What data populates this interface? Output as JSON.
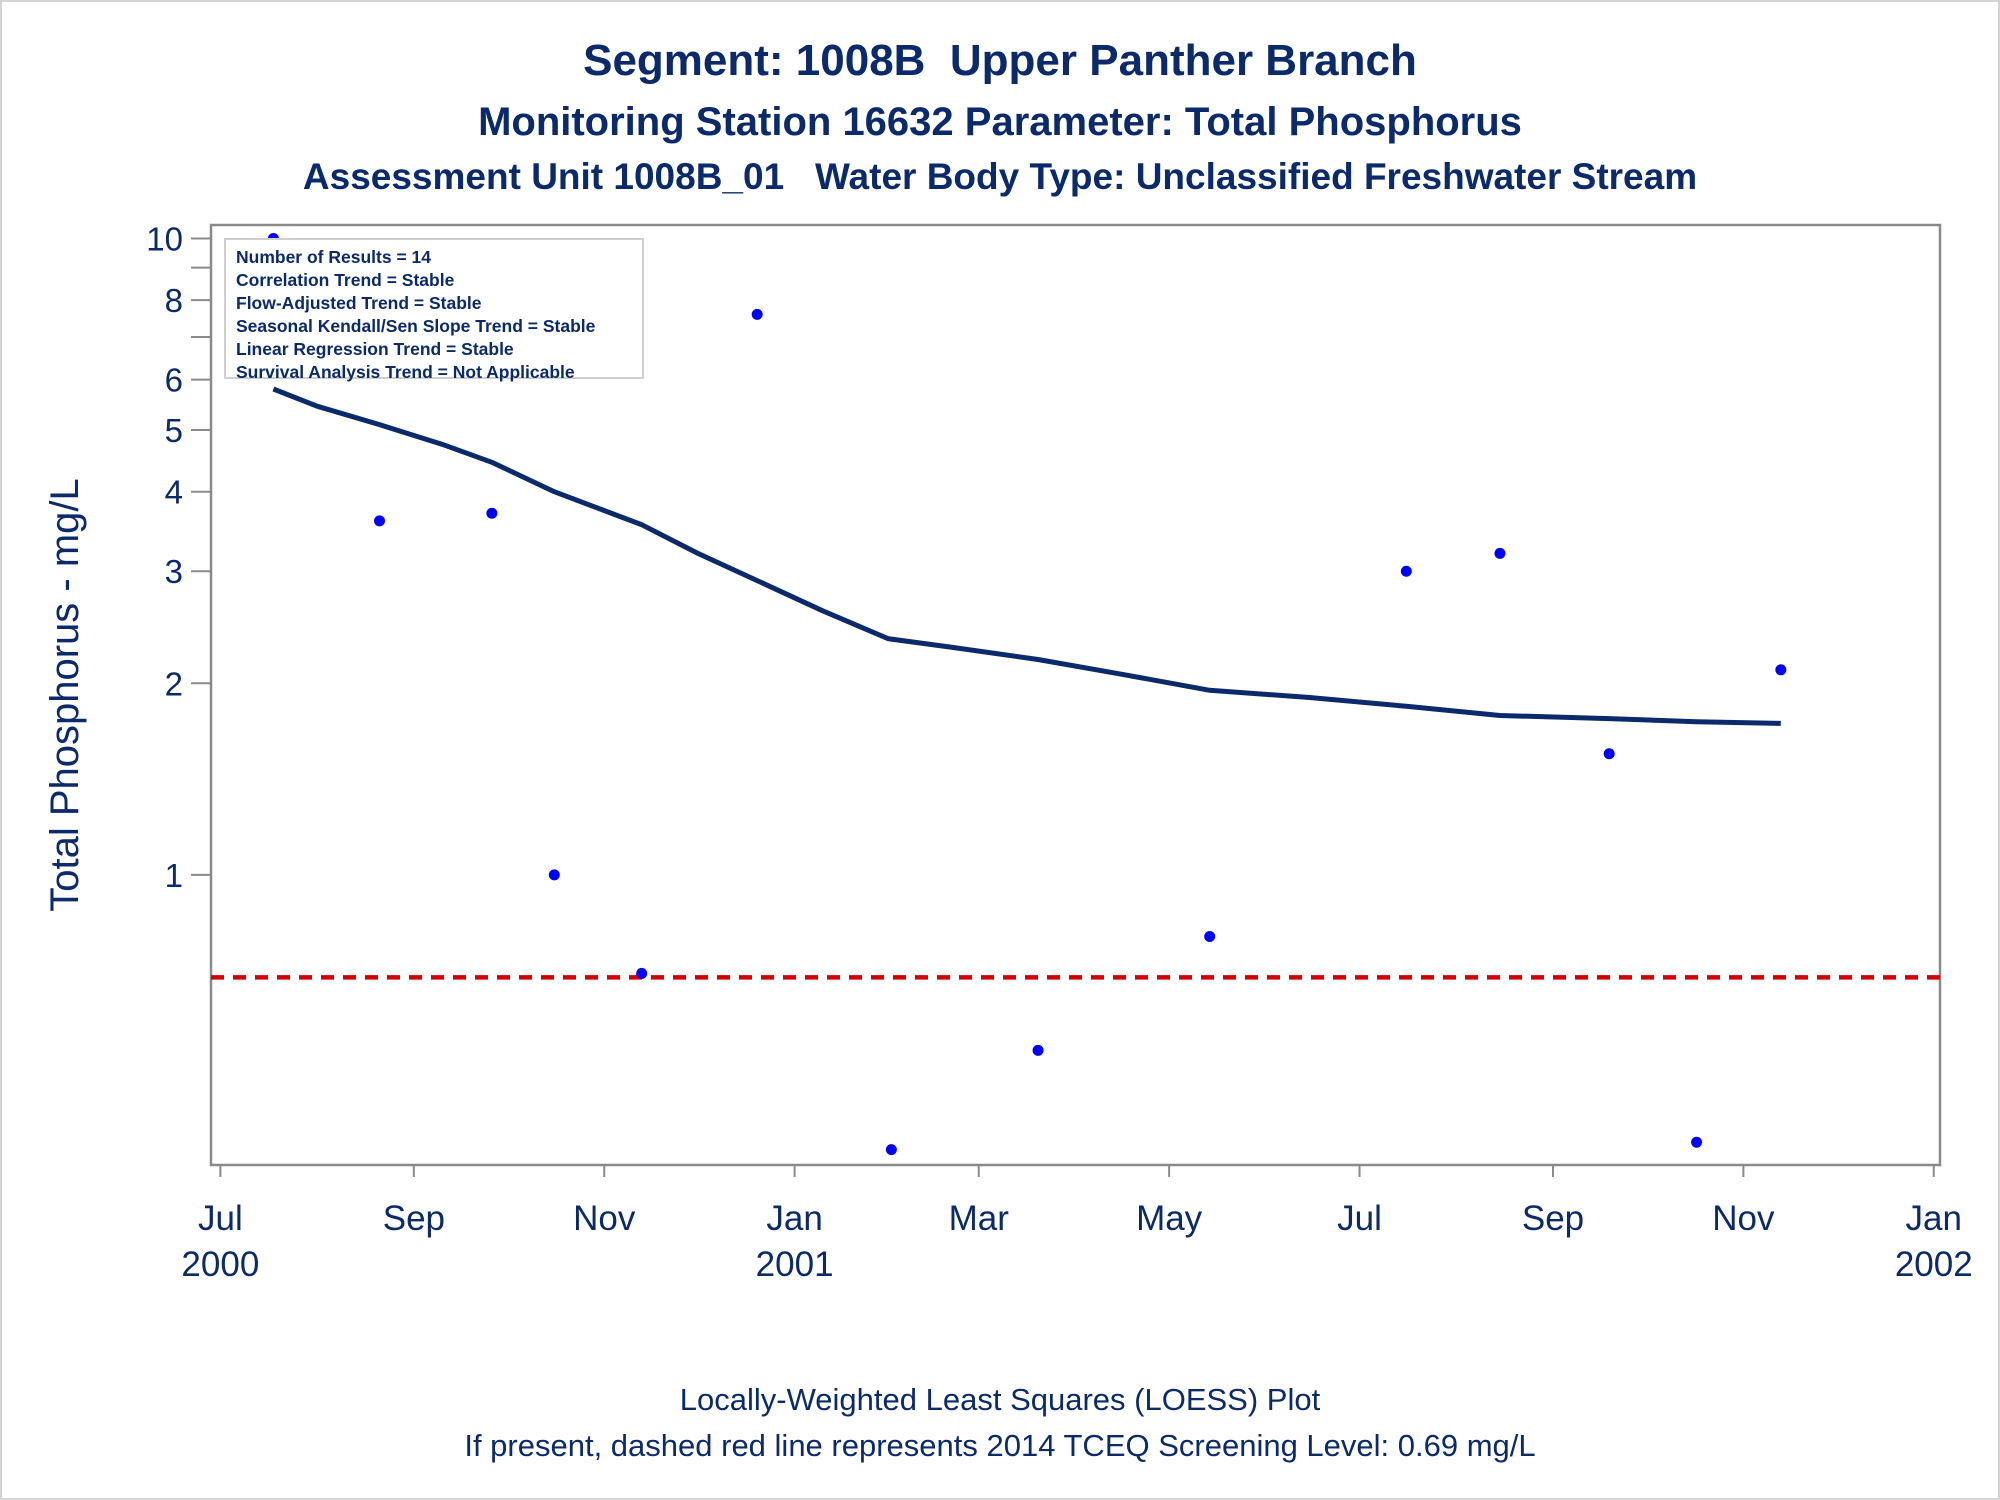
{
  "header": {
    "title": "Segment: 1008B  Upper Panther Branch",
    "subtitle": "Monitoring Station 16632 Parameter: Total Phosphorus",
    "subtitle2": "Assessment Unit 1008B_01   Water Body Type: Unclassified Freshwater Stream"
  },
  "stats_box": {
    "lines": [
      "Number of Results = 14",
      "Correlation Trend = Stable",
      "Flow-Adjusted Trend = Stable",
      "Seasonal Kendall/Sen Slope Trend = Stable",
      "Linear Regression Trend = Stable",
      "Survival Analysis Trend = Not Applicable"
    ]
  },
  "footer": {
    "line1": "Locally-Weighted Least Squares (LOESS) Plot",
    "line2": "If present, dashed red line represents 2014 TCEQ Screening Level: 0.69 mg/L"
  },
  "colors": {
    "text": "#0b2a6b",
    "points": "#0000ff",
    "loess": "#0b2a6b",
    "screening": "#d40000",
    "axes": "#8a8a8a"
  },
  "chart_data": {
    "type": "scatter",
    "ylabel": "Total Phosphorus - mg/L",
    "xlabel": "",
    "yscale": "log",
    "ylim": [
      0.35,
      10.5
    ],
    "xlim": [
      "2000-06-28",
      "2002-01-03"
    ],
    "yticks": [
      1,
      2,
      3,
      4,
      5,
      6,
      8,
      10
    ],
    "xticks": [
      {
        "date": "2000-07-01",
        "label": [
          "Jul",
          "2000"
        ]
      },
      {
        "date": "2000-09-01",
        "label": [
          "Sep",
          ""
        ]
      },
      {
        "date": "2000-11-01",
        "label": [
          "Nov",
          ""
        ]
      },
      {
        "date": "2001-01-01",
        "label": [
          "Jan",
          "2001"
        ]
      },
      {
        "date": "2001-03-01",
        "label": [
          "Mar",
          ""
        ]
      },
      {
        "date": "2001-05-01",
        "label": [
          "May",
          ""
        ]
      },
      {
        "date": "2001-07-01",
        "label": [
          "Jul",
          ""
        ]
      },
      {
        "date": "2001-09-01",
        "label": [
          "Sep",
          ""
        ]
      },
      {
        "date": "2001-11-01",
        "label": [
          "Nov",
          ""
        ]
      },
      {
        "date": "2002-01-01",
        "label": [
          "Jan",
          "2002"
        ]
      }
    ],
    "minor_yticks": [
      7,
      9
    ],
    "series": [
      {
        "kind": "points",
        "values": [
          {
            "x": "2000-07-18",
            "y": 10.0
          },
          {
            "x": "2000-08-21",
            "y": 3.6
          },
          {
            "x": "2000-09-26",
            "y": 3.7
          },
          {
            "x": "2000-10-16",
            "y": 1.0
          },
          {
            "x": "2000-11-13",
            "y": 0.7
          },
          {
            "x": "2000-12-20",
            "y": 7.6
          },
          {
            "x": "2001-02-01",
            "y": 0.37
          },
          {
            "x": "2001-03-20",
            "y": 0.53
          },
          {
            "x": "2001-05-14",
            "y": 0.8
          },
          {
            "x": "2001-07-16",
            "y": 3.0
          },
          {
            "x": "2001-08-15",
            "y": 3.2
          },
          {
            "x": "2001-09-19",
            "y": 1.55
          },
          {
            "x": "2001-10-17",
            "y": 0.38
          },
          {
            "x": "2001-11-13",
            "y": 2.1
          }
        ]
      },
      {
        "kind": "loess",
        "values": [
          {
            "x": "2000-07-18",
            "y": 5.8
          },
          {
            "x": "2000-08-01",
            "y": 5.45
          },
          {
            "x": "2000-08-21",
            "y": 5.1
          },
          {
            "x": "2000-09-10",
            "y": 4.75
          },
          {
            "x": "2000-09-26",
            "y": 4.45
          },
          {
            "x": "2000-10-16",
            "y": 4.0
          },
          {
            "x": "2000-11-13",
            "y": 3.55
          },
          {
            "x": "2000-12-01",
            "y": 3.2
          },
          {
            "x": "2000-12-20",
            "y": 2.9
          },
          {
            "x": "2001-01-10",
            "y": 2.6
          },
          {
            "x": "2001-01-31",
            "y": 2.35
          },
          {
            "x": "2001-02-20",
            "y": 2.28
          },
          {
            "x": "2001-03-20",
            "y": 2.18
          },
          {
            "x": "2001-04-15",
            "y": 2.07
          },
          {
            "x": "2001-05-14",
            "y": 1.95
          },
          {
            "x": "2001-06-15",
            "y": 1.9
          },
          {
            "x": "2001-07-16",
            "y": 1.84
          },
          {
            "x": "2001-08-15",
            "y": 1.78
          },
          {
            "x": "2001-09-19",
            "y": 1.76
          },
          {
            "x": "2001-10-17",
            "y": 1.74
          },
          {
            "x": "2001-11-13",
            "y": 1.73
          }
        ]
      }
    ],
    "reference_line": {
      "y": 0.69,
      "style": "dashed",
      "color": "#d40000"
    },
    "grid": false
  }
}
